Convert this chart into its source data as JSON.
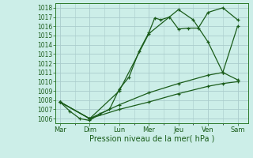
{
  "background_color": "#cceee8",
  "grid_color": "#aacccc",
  "line_color": "#1a5c1a",
  "xlabel": "Pression niveau de la mer( hPa )",
  "x_labels": [
    "Mar",
    "Dim",
    "Lun",
    "Mer",
    "Jeu",
    "Ven",
    "Sam"
  ],
  "x_positions": [
    0,
    1,
    2,
    3,
    4,
    5,
    6
  ],
  "ylim": [
    1005.5,
    1018.5
  ],
  "yticks": [
    1006,
    1007,
    1008,
    1009,
    1010,
    1011,
    1012,
    1013,
    1014,
    1015,
    1016,
    1017,
    1018
  ],
  "series": [
    {
      "x": [
        0.0,
        0.33,
        0.67,
        1.0,
        1.33,
        1.67,
        2.0,
        2.33,
        2.67,
        3.0,
        3.2,
        3.4,
        3.7,
        4.0,
        4.33,
        4.67,
        5.0,
        5.5,
        6.0
      ],
      "y": [
        1007.8,
        1006.8,
        1006.0,
        1005.8,
        1006.5,
        1007.0,
        1009.2,
        1010.5,
        1013.3,
        1015.3,
        1016.9,
        1016.7,
        1017.0,
        1015.7,
        1015.8,
        1015.8,
        1017.5,
        1018.0,
        1016.7
      ]
    },
    {
      "x": [
        0.0,
        1.0,
        2.0,
        3.0,
        4.0,
        4.5,
        5.0,
        5.5,
        6.0
      ],
      "y": [
        1007.8,
        1006.0,
        1009.0,
        1015.2,
        1017.8,
        1016.7,
        1014.3,
        1011.0,
        1016.0
      ]
    },
    {
      "x": [
        0.0,
        1.0,
        2.0,
        3.0,
        4.0,
        5.0,
        5.5,
        6.0
      ],
      "y": [
        1007.8,
        1006.0,
        1007.5,
        1008.8,
        1009.8,
        1010.7,
        1011.0,
        1010.2
      ]
    },
    {
      "x": [
        0.0,
        1.0,
        2.0,
        3.0,
        4.0,
        5.0,
        5.5,
        6.0
      ],
      "y": [
        1007.8,
        1006.0,
        1007.0,
        1007.8,
        1008.7,
        1009.5,
        1009.8,
        1010.0
      ]
    }
  ]
}
